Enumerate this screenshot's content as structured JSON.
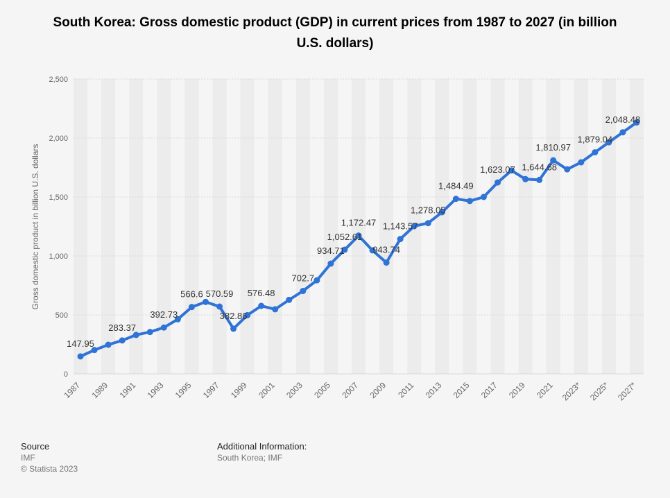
{
  "header": {
    "title": "South Korea: Gross domestic product (GDP) in current prices from 1987 to 2027 (in billion U.S. dollars)"
  },
  "footer": {
    "source_label": "Source",
    "source_lines": [
      "IMF",
      "© Statista 2023"
    ],
    "info_label": "Additional Information:",
    "info_text": "South Korea; IMF"
  },
  "colors": {
    "line": "#2f73d6",
    "band": "#ececec",
    "grid": "#d9d9d9",
    "label": "#333333",
    "axis_text": "#666666"
  },
  "chart_data": {
    "type": "line",
    "title": "South Korea: Gross domestic product (GDP) in current prices from 1987 to 2027 (in billion U.S. dollars)",
    "xlabel": "",
    "ylabel": "Gross domestic product in billion U.S. dollars",
    "ylim": [
      0,
      2500
    ],
    "yticks": [
      0,
      500,
      1000,
      1500,
      2000,
      2500
    ],
    "ytick_labels": [
      "0",
      "500",
      "1,000",
      "1,500",
      "2,000",
      "2,500"
    ],
    "grid": true,
    "categories": [
      "1987",
      "1988",
      "1989",
      "1990",
      "1991",
      "1992",
      "1993",
      "1994",
      "1995",
      "1996",
      "1997",
      "1998",
      "1999",
      "2000",
      "2001",
      "2002",
      "2003",
      "2004",
      "2005",
      "2006",
      "2007",
      "2008",
      "2009",
      "2010",
      "2011",
      "2012",
      "2013",
      "2014",
      "2015",
      "2016",
      "2017",
      "2018",
      "2019",
      "2020",
      "2021",
      "2022",
      "2023*",
      "2024*",
      "2025*",
      "2026*",
      "2027*"
    ],
    "xtick_labels": [
      "1987",
      "1989",
      "1991",
      "1993",
      "1995",
      "1997",
      "1999",
      "2001",
      "2003",
      "2005",
      "2007",
      "2009",
      "2011",
      "2013",
      "2015",
      "2017",
      "2019",
      "2021",
      "2023*",
      "2025*",
      "2027*"
    ],
    "series": [
      {
        "name": "GDP",
        "values": [
          147.95,
          202,
          247,
          283.37,
          330,
          355,
          392.73,
          463,
          566.6,
          610,
          570.59,
          382.86,
          497.5,
          576.48,
          547.66,
          627.25,
          702.7,
          793.2,
          934.71,
          1052.61,
          1172.47,
          1047.34,
          943.74,
          1143.57,
          1253.16,
          1278.05,
          1370.8,
          1484.49,
          1465.77,
          1500.11,
          1623.07,
          1724.85,
          1651.42,
          1644.68,
          1810.97,
          1734.21,
          1793.91,
          1879.04,
          1963.83,
          2048.48,
          2132.17
        ],
        "labels": [
          "147.95",
          null,
          null,
          "283.37",
          null,
          null,
          "392.73",
          null,
          "566.6",
          null,
          "570.59",
          "382.86",
          null,
          "576.48",
          null,
          null,
          "702.7",
          null,
          "934.71",
          "1,052.61",
          "1,172.47",
          null,
          "943.74",
          "1,143.57",
          null,
          "1,278.05",
          null,
          "1,484.49",
          null,
          null,
          "1,623.07",
          null,
          null,
          "1,644.68",
          "1,810.97",
          null,
          null,
          "1,879.04",
          null,
          "2,048.48",
          null
        ]
      }
    ]
  }
}
